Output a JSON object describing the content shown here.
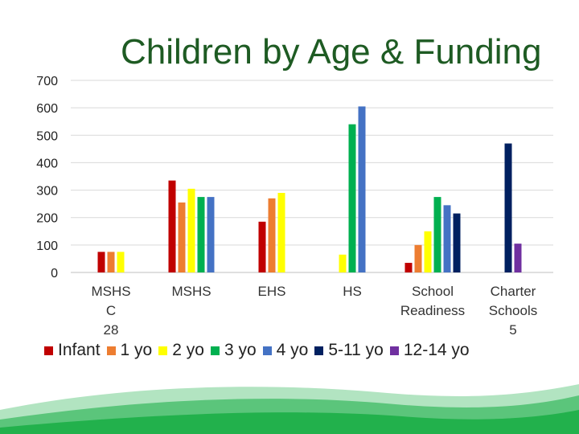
{
  "chart_data": {
    "type": "bar",
    "title": "Children by Age & Funding",
    "xlabel": "",
    "ylabel": "",
    "ylim": [
      0,
      700
    ],
    "yticks": [
      0,
      100,
      200,
      300,
      400,
      500,
      600,
      700
    ],
    "grid": true,
    "legend_position": "bottom",
    "categories": [
      [
        "MSHS",
        "C",
        "28"
      ],
      [
        "MSHS"
      ],
      [
        "EHS"
      ],
      [
        "HS"
      ],
      [
        "School",
        "Readiness"
      ],
      [
        "Charter",
        "Schools",
        "5"
      ]
    ],
    "series": [
      {
        "name": "Infant",
        "color": "#c00000",
        "values": [
          75,
          335,
          185,
          null,
          35,
          null
        ]
      },
      {
        "name": "1 yo",
        "color": "#ed7d31",
        "values": [
          75,
          255,
          270,
          null,
          100,
          null
        ]
      },
      {
        "name": "2 yo",
        "color": "#ffff00",
        "values": [
          75,
          305,
          290,
          65,
          150,
          null
        ]
      },
      {
        "name": "3 yo",
        "color": "#00b050",
        "values": [
          null,
          275,
          null,
          540,
          275,
          null
        ]
      },
      {
        "name": "4 yo",
        "color": "#4472c4",
        "values": [
          null,
          275,
          null,
          605,
          245,
          null
        ]
      },
      {
        "name": "5-11 yo",
        "color": "#002060",
        "values": [
          null,
          null,
          null,
          null,
          215,
          470
        ]
      },
      {
        "name": "12-14 yo",
        "color": "#7030a0",
        "values": [
          null,
          null,
          null,
          null,
          null,
          105
        ]
      }
    ]
  },
  "footer": {
    "accent_color": "#22b14c"
  }
}
